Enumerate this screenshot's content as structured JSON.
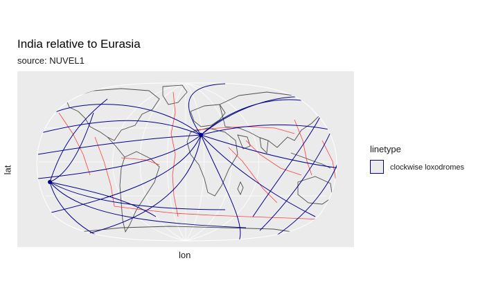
{
  "title": "India relative to Eurasia",
  "subtitle": "source: NUVEL1",
  "axes": {
    "x_label": "lon",
    "y_label": "lat"
  },
  "legend": {
    "title": "linetype",
    "items": [
      "clockwise loxodromes"
    ]
  },
  "colors": {
    "panel": "#ebebeb",
    "graticule": "#ffffff",
    "coastline": "#4d4d4d",
    "plate_boundaries": "#ff3b3b",
    "loxodromes": "#00008b"
  },
  "map": {
    "projection": "robinson-like",
    "relative_plate_motion": {
      "moving_plate": "India",
      "fixed_plate": "Eurasia",
      "model": "NUVEL1"
    },
    "poles": [
      {
        "name": "Euler pole",
        "lon": 20,
        "lat": 26
      },
      {
        "name": "antipole",
        "lon": -160,
        "lat": -26
      }
    ]
  }
}
